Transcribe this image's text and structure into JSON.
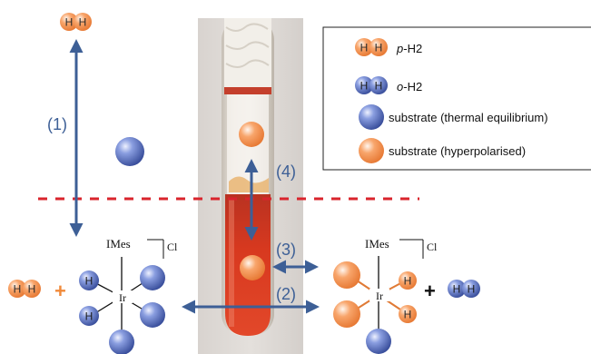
{
  "legend": {
    "items": [
      {
        "prefix": "p",
        "suffix": "-H2"
      },
      {
        "prefix": "o",
        "suffix": "-H2"
      },
      {
        "label": "substrate (thermal equilibrium)"
      },
      {
        "label": "substrate (hyperpolarised)"
      }
    ]
  },
  "atoms": {
    "h": "H",
    "ir": "Ir"
  },
  "complex": {
    "ligand": "IMes",
    "halide": "Cl"
  },
  "steps": {
    "s1": "(1)",
    "s2": "(2)",
    "s3": "(3)",
    "s4": "(4)"
  },
  "operators": {
    "plus": "+"
  },
  "colors": {
    "para_orange": "#f79a5a",
    "ortho_blue": "#6f86c9",
    "arrow_blue": "#3d5f96",
    "dashed_red": "#d9242c",
    "label_blue": "#3d5f96",
    "solution_red": "#d8391f"
  }
}
